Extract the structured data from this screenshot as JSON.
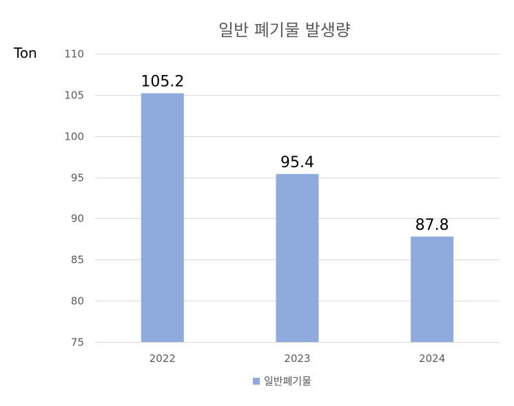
{
  "chart_data": {
    "type": "bar",
    "title": "일반 폐기물 발생량",
    "ylabel": "Ton",
    "xlabel": "",
    "categories": [
      "2022",
      "2023",
      "2024"
    ],
    "series": [
      {
        "name": "일반폐기물",
        "values": [
          105.2,
          95.4,
          87.8
        ],
        "color": "#8faadc"
      }
    ],
    "ylim": [
      75,
      110
    ],
    "yticks": [
      75,
      80,
      85,
      90,
      95,
      100,
      105,
      110
    ],
    "grid": true,
    "legend_position": "bottom"
  }
}
